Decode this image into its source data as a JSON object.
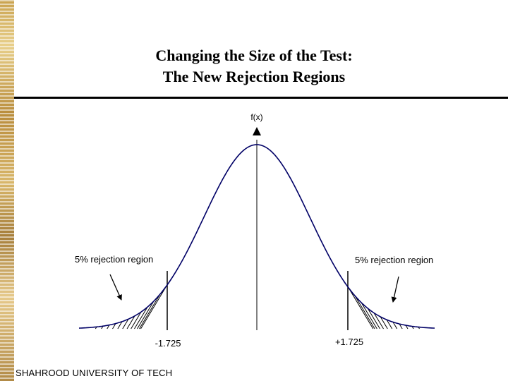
{
  "slide": {
    "title_line1": "Changing the Size of the Test:",
    "title_line2": "The New Rejection Regions",
    "footer": "SHAHROOD UNIVERSITY OF TECH"
  },
  "diagram": {
    "y_axis_label": "f(x)",
    "left_region_label": "5% rejection region",
    "right_region_label": "5% rejection region",
    "left_critical_value": "-1.725",
    "right_critical_value": "+1.725",
    "curve_color": "#000066"
  }
}
